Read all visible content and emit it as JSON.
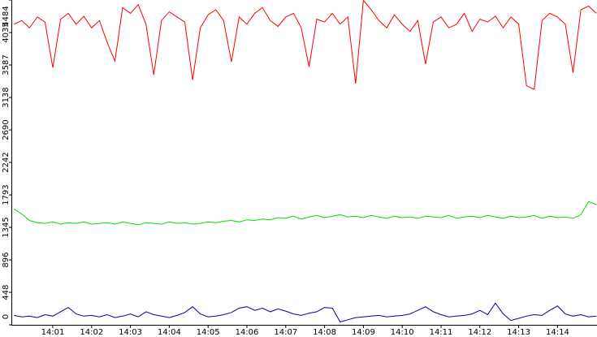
{
  "chart_data": {
    "type": "line",
    "categories": [
      null,
      null,
      null,
      null,
      null,
      "14:01",
      null,
      null,
      null,
      null,
      "14:02",
      null,
      null,
      null,
      null,
      "14:03",
      null,
      null,
      null,
      null,
      "14:04",
      null,
      null,
      null,
      null,
      "14:05",
      null,
      null,
      null,
      null,
      "14:06",
      null,
      null,
      null,
      null,
      "14:07",
      null,
      null,
      null,
      null,
      "14:08",
      null,
      null,
      null,
      null,
      "14:09",
      null,
      null,
      null,
      null,
      "14:10",
      null,
      null,
      null,
      null,
      "14:11",
      null,
      null,
      null,
      null,
      "14:12",
      null,
      null,
      null,
      null,
      "14:13",
      null,
      null,
      null,
      null,
      "14:14",
      null,
      null,
      null,
      null,
      null
    ],
    "series": [
      {
        "color": "#ff0000",
        "values": [
          4150,
          4200,
          4100,
          4250,
          4180,
          3550,
          4220,
          4300,
          4150,
          4260,
          4100,
          4200,
          3900,
          3640,
          4380,
          4300,
          4420,
          4150,
          3450,
          4200,
          4320,
          4250,
          4180,
          3380,
          4100,
          4280,
          4350,
          4200,
          3630,
          4250,
          4150,
          4300,
          4380,
          4200,
          4120,
          4250,
          4300,
          4100,
          3560,
          4220,
          4180,
          4300,
          4150,
          4250,
          3330,
          4480,
          4350,
          4200,
          4100,
          4280,
          4150,
          4050,
          4200,
          3600,
          4180,
          4250,
          4100,
          4150,
          4300,
          4050,
          4220,
          4180,
          4260,
          4100,
          4250,
          4150,
          3300,
          3250,
          4200,
          4300,
          4250,
          4150,
          3480,
          4350,
          4400,
          4300
        ]
      },
      {
        "color": "#00dd00",
        "values": [
          1600,
          1530,
          1440,
          1410,
          1400,
          1420,
          1390,
          1410,
          1400,
          1420,
          1390,
          1400,
          1410,
          1390,
          1420,
          1400,
          1380,
          1410,
          1400,
          1390,
          1420,
          1400,
          1410,
          1390,
          1400,
          1420,
          1410,
          1430,
          1440,
          1420,
          1450,
          1440,
          1460,
          1450,
          1480,
          1470,
          1500,
          1460,
          1490,
          1510,
          1480,
          1500,
          1520,
          1490,
          1500,
          1480,
          1510,
          1490,
          1470,
          1500,
          1480,
          1490,
          1470,
          1500,
          1490,
          1480,
          1510,
          1470,
          1490,
          1500,
          1480,
          1510,
          1490,
          1470,
          1500,
          1480,
          1490,
          1510,
          1470,
          1500,
          1480,
          1490,
          1470,
          1520,
          1700,
          1660
        ]
      },
      {
        "color": "#0000aa",
        "values": [
          130,
          110,
          120,
          100,
          140,
          120,
          180,
          240,
          150,
          120,
          130,
          110,
          140,
          100,
          120,
          150,
          110,
          180,
          140,
          120,
          100,
          130,
          170,
          250,
          150,
          110,
          120,
          140,
          170,
          230,
          250,
          200,
          230,
          180,
          220,
          190,
          150,
          130,
          160,
          180,
          240,
          230,
          40,
          70,
          100,
          110,
          120,
          130,
          110,
          120,
          130,
          150,
          200,
          250,
          180,
          140,
          110,
          120,
          130,
          150,
          200,
          140,
          300,
          150,
          60,
          90,
          120,
          140,
          130,
          200,
          260,
          150,
          120,
          140,
          110,
          120
        ]
      }
    ],
    "ylim": [
      0,
      4484
    ],
    "yticks": [
      0,
      448,
      896,
      1345,
      1793,
      2242,
      2690,
      3138,
      3587,
      4035,
      4484
    ]
  }
}
